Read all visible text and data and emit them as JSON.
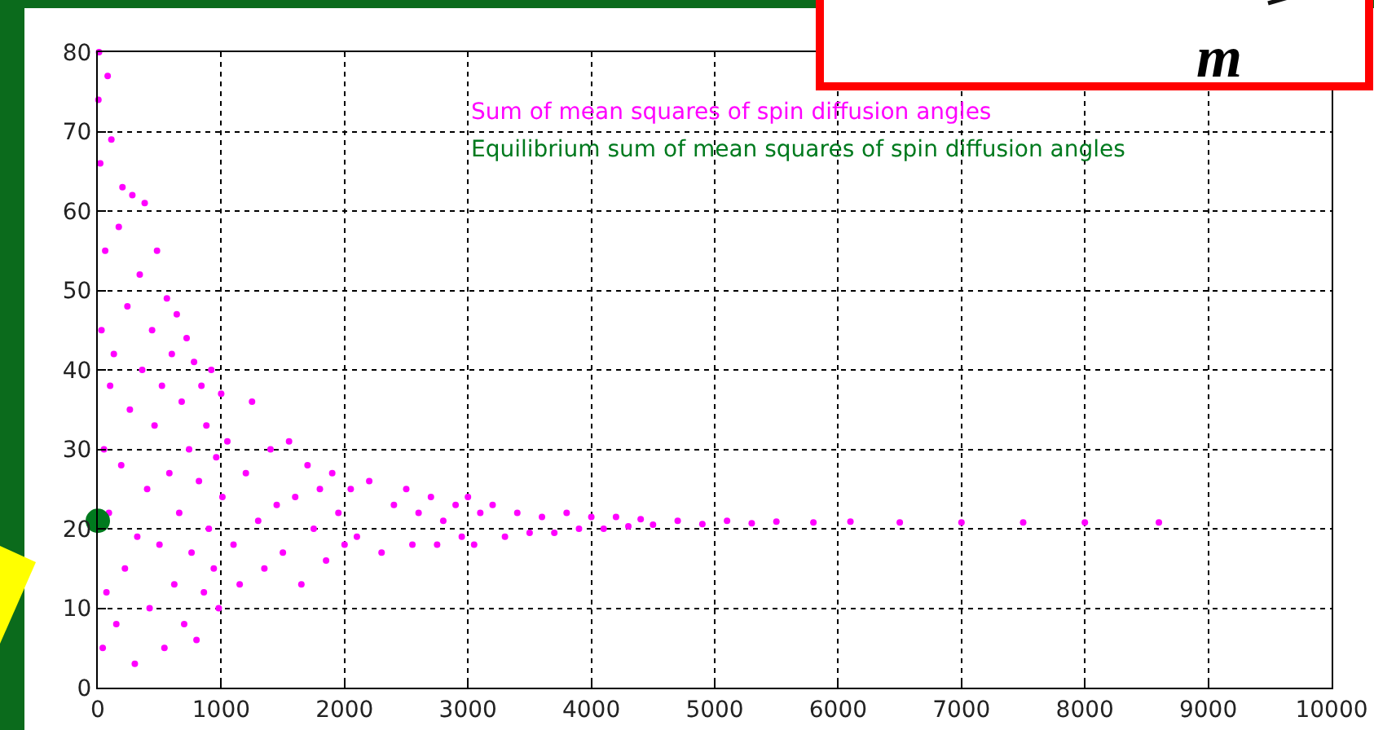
{
  "chart_data": {
    "type": "scatter",
    "xlim": [
      0,
      10000
    ],
    "ylim": [
      0,
      80
    ],
    "xticks": [
      0,
      1000,
      2000,
      3000,
      4000,
      5000,
      6000,
      7000,
      8000,
      9000,
      10000
    ],
    "yticks": [
      0,
      10,
      20,
      30,
      40,
      50,
      60,
      70,
      80
    ],
    "grid": true,
    "marker": "circle",
    "annotations": [
      "m"
    ],
    "series": [
      {
        "name": "Sum of mean squares of spin diffusion angles",
        "color": "#ff00ff",
        "x": [
          5,
          10,
          20,
          30,
          40,
          50,
          60,
          70,
          80,
          90,
          100,
          110,
          130,
          150,
          170,
          190,
          200,
          220,
          240,
          260,
          280,
          300,
          320,
          340,
          360,
          380,
          400,
          420,
          440,
          460,
          480,
          500,
          520,
          540,
          560,
          580,
          600,
          620,
          640,
          660,
          680,
          700,
          720,
          740,
          760,
          780,
          800,
          820,
          840,
          860,
          880,
          900,
          920,
          940,
          960,
          980,
          1000,
          1010,
          1050,
          1100,
          1150,
          1200,
          1250,
          1300,
          1350,
          1400,
          1450,
          1500,
          1550,
          1600,
          1650,
          1700,
          1750,
          1800,
          1850,
          1900,
          1950,
          2000,
          2050,
          2100,
          2200,
          2300,
          2400,
          2500,
          2550,
          2600,
          2700,
          2750,
          2800,
          2900,
          2950,
          3000,
          3050,
          3100,
          3200,
          3300,
          3400,
          3500,
          3600,
          3700,
          3800,
          3900,
          4000,
          4100,
          4200,
          4300,
          4400,
          4500,
          4700,
          4900,
          5100,
          5300,
          5500,
          5800,
          6100,
          6500,
          7000,
          7500,
          8000,
          8600
        ],
        "values": [
          74,
          80,
          66,
          45,
          5,
          30,
          55,
          12,
          77,
          22,
          38,
          69,
          42,
          8,
          58,
          28,
          63,
          15,
          48,
          35,
          62,
          3,
          19,
          52,
          40,
          61,
          25,
          10,
          45,
          33,
          55,
          18,
          38,
          5,
          49,
          27,
          42,
          13,
          47,
          22,
          36,
          8,
          44,
          30,
          17,
          41,
          6,
          26,
          38,
          12,
          33,
          20,
          40,
          15,
          29,
          10,
          37,
          24,
          31,
          18,
          13,
          27,
          36,
          21,
          15,
          30,
          23,
          17,
          31,
          24,
          13,
          28,
          20,
          25,
          16,
          27,
          22,
          18,
          25,
          19,
          26,
          17,
          23,
          25,
          18,
          22,
          24,
          18,
          21,
          23,
          19,
          24,
          18,
          22,
          23,
          19,
          22,
          19.5,
          21.5,
          19.5,
          22,
          20,
          21.5,
          20,
          21.5,
          20.3,
          21.2,
          20.5,
          21,
          20.6,
          21,
          20.7,
          20.9,
          20.8,
          20.9,
          20.8,
          20.8,
          20.8,
          20.8,
          20.8
        ]
      },
      {
        "name": "Equilibrium sum of mean squares of spin diffusion angles",
        "color": "#007a1e",
        "x": [
          0
        ],
        "values": [
          21
        ]
      }
    ]
  }
}
